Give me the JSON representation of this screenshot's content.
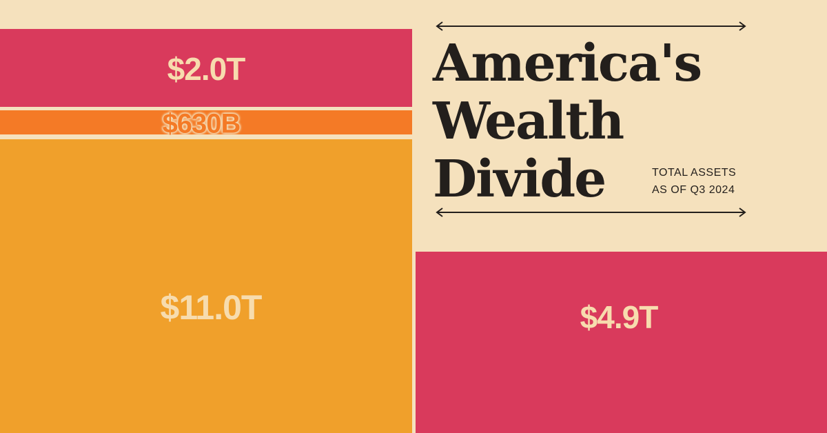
{
  "chart_data": {
    "type": "treemap",
    "title": "America's Wealth Divide",
    "subtitle": "TOTAL ASSETS AS OF Q3 2024",
    "values": [
      2.0,
      0.63,
      11.0,
      4.9
    ],
    "value_labels": [
      "$2.0T",
      "$630B",
      "$11.0T",
      "$4.9T"
    ],
    "colors": [
      "#d93a5c",
      "#f47a26",
      "#f0a02b",
      "#d93a5c"
    ]
  }
}
